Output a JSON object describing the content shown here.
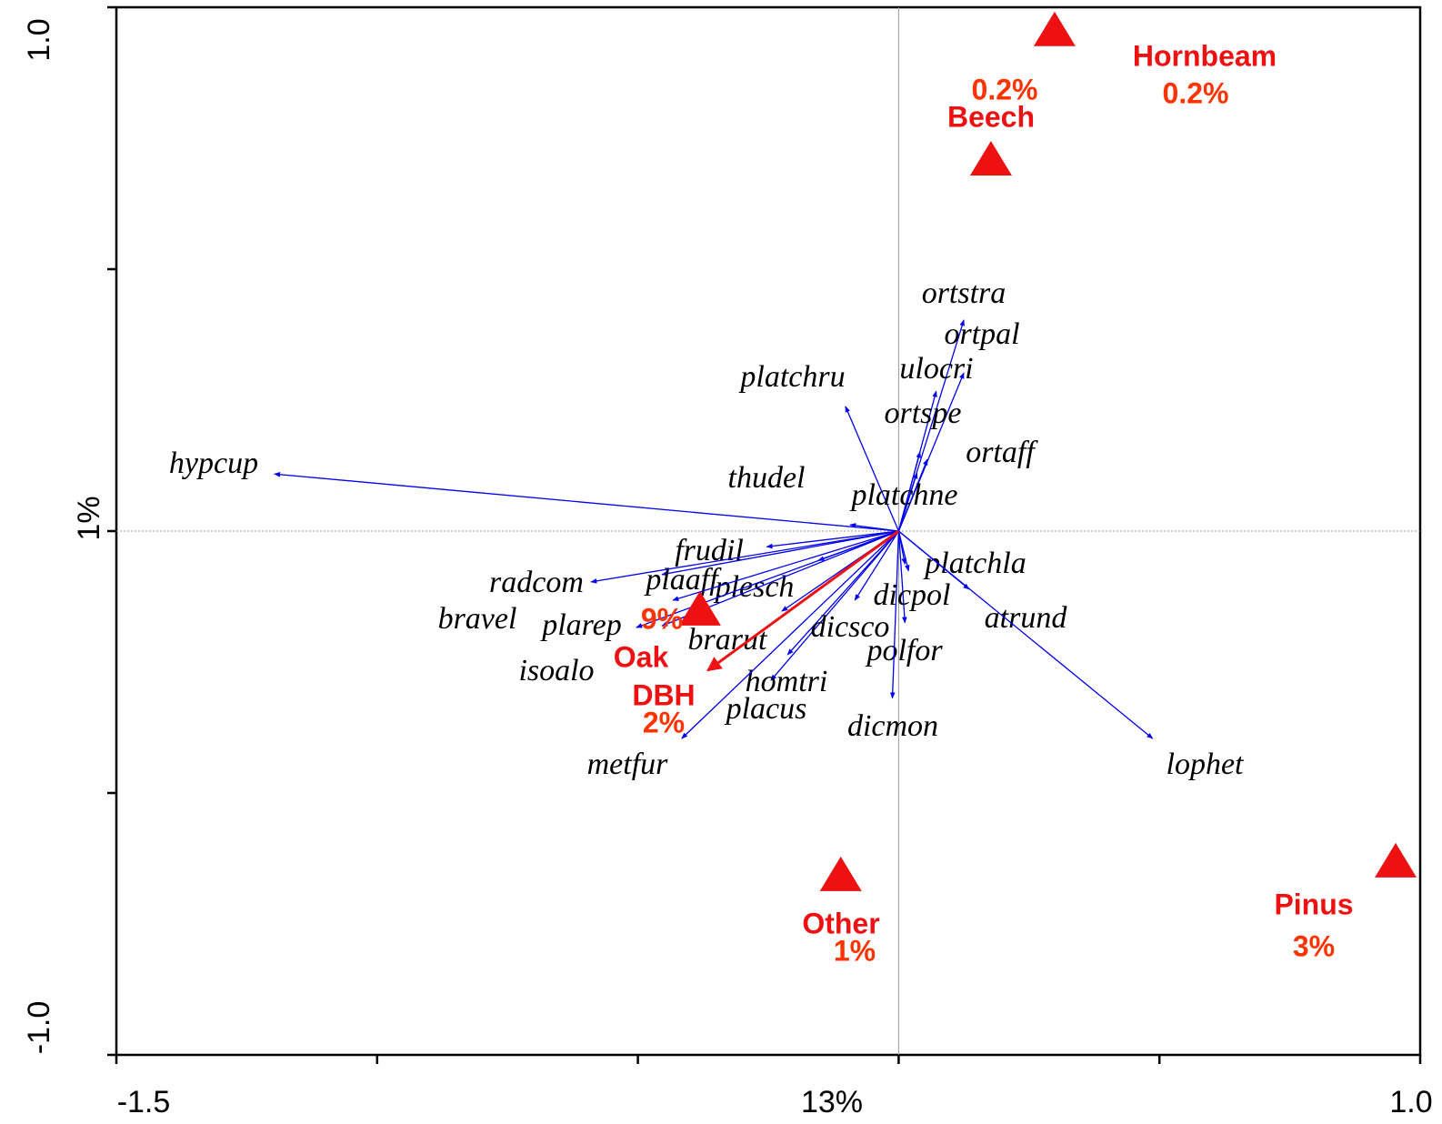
{
  "chart_data": {
    "type": "biplot",
    "xlabel": "13%",
    "ylabel": "1%",
    "xlim": [
      -1.5,
      1.0
    ],
    "ylim": [
      -1.0,
      1.0
    ],
    "xticks": [
      -1.5,
      {
        "value": 1.0,
        "label": "1.0"
      }
    ],
    "yticks": [
      {
        "value": -1.0,
        "label": "-1.0"
      },
      {
        "value": 1.0,
        "label": "1.0"
      }
    ],
    "minor_xticks": [
      -1.0,
      -0.5,
      0,
      0.5
    ],
    "minor_yticks": [
      -0.5,
      0,
      0.5
    ],
    "species_color": "#0000ee",
    "env_color": "#ee1111",
    "percent_color": "#ff3300",
    "species": [
      {
        "name": "hypcup",
        "x": -1.197,
        "y": 0.109
      },
      {
        "name": "platchru",
        "x": -0.102,
        "y": 0.238
      },
      {
        "name": "ortstra",
        "x": 0.125,
        "y": 0.403
      },
      {
        "name": "ortpal",
        "x": 0.125,
        "y": 0.302
      },
      {
        "name": "ulocri",
        "x": 0.072,
        "y": 0.267
      },
      {
        "name": "ortspe",
        "x": 0.041,
        "y": 0.151
      },
      {
        "name": "ortaff",
        "x": 0.055,
        "y": 0.137
      },
      {
        "name": "thudel",
        "x": -0.093,
        "y": 0.012
      },
      {
        "name": "platchne",
        "x": 0.035,
        "y": 0.111
      },
      {
        "name": "frudil",
        "x": -0.253,
        "y": -0.03
      },
      {
        "name": "plaaff",
        "x": -0.454,
        "y": -0.083
      },
      {
        "name": "plesch",
        "x": -0.154,
        "y": -0.056
      },
      {
        "name": "radcom",
        "x": -0.59,
        "y": -0.097
      },
      {
        "name": "bravel",
        "x": -0.503,
        "y": -0.184
      },
      {
        "name": "plarep",
        "x": -0.454,
        "y": -0.181
      },
      {
        "name": "isoalo",
        "x": -0.433,
        "y": -0.132
      },
      {
        "name": "brarut",
        "x": -0.224,
        "y": -0.153
      },
      {
        "name": "homtri",
        "x": -0.245,
        "y": -0.285
      },
      {
        "name": "placus",
        "x": -0.213,
        "y": -0.236
      },
      {
        "name": "metfur",
        "x": -0.416,
        "y": -0.396
      },
      {
        "name": "dicsco",
        "x": -0.084,
        "y": -0.132
      },
      {
        "name": "dicpol",
        "x": 0.012,
        "y": -0.175
      },
      {
        "name": "polfor",
        "x": 0.012,
        "y": -0.063
      },
      {
        "name": "dicmon",
        "x": -0.012,
        "y": -0.319
      },
      {
        "name": "platchla",
        "x": 0.019,
        "y": -0.076
      },
      {
        "name": "atrund",
        "x": 0.135,
        "y": -0.111
      },
      {
        "name": "lophet",
        "x": 0.487,
        "y": -0.396
      }
    ],
    "env_vectors": [
      {
        "name": "DBH",
        "label": "2%",
        "x": -0.366,
        "y": -0.266
      }
    ],
    "centroids": [
      {
        "name": "Oak",
        "label": "9%",
        "x": -0.381,
        "y": -0.149
      },
      {
        "name": "Beech",
        "label": "0.2%",
        "x": 0.177,
        "y": 0.71
      },
      {
        "name": "Hornbeam",
        "label": "0.2%",
        "x": 0.299,
        "y": 0.957
      },
      {
        "name": "Other",
        "label": "1%",
        "x": -0.111,
        "y": -0.656
      },
      {
        "name": "Pinus",
        "label": "3%",
        "x": 0.953,
        "y": -0.63
      }
    ]
  }
}
